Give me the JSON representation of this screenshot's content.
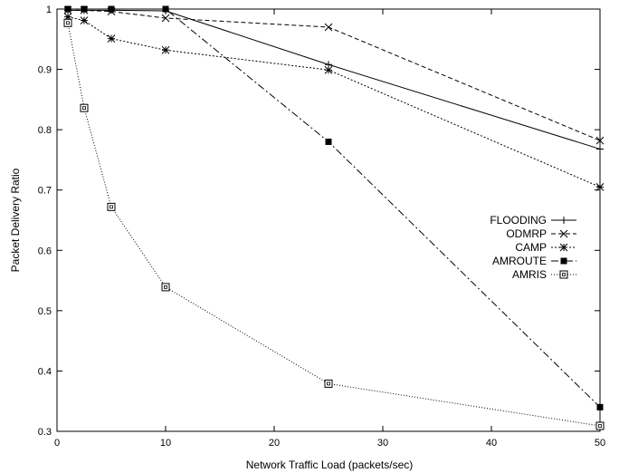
{
  "chart_data": {
    "type": "line",
    "title": "",
    "xlabel": "Network Traffic Load (packets/sec)",
    "ylabel": "Packet Delivery Ratio",
    "xlim": [
      0,
      50
    ],
    "ylim": [
      0.3,
      1.0
    ],
    "x_ticks": [
      "0",
      "10",
      "20",
      "30",
      "40",
      "50"
    ],
    "y_ticks": [
      "0.3",
      "0.4",
      "0.5",
      "0.6",
      "0.7",
      "0.8",
      "0.9",
      "1"
    ],
    "grid": false,
    "legend_position": "right",
    "series": [
      {
        "name": "FLOODING",
        "marker": "plus",
        "dash": "solid",
        "x": [
          1,
          2.5,
          5,
          10,
          25,
          50
        ],
        "y": [
          0.998,
          0.998,
          0.998,
          0.997,
          0.908,
          0.768
        ]
      },
      {
        "name": "ODMRP",
        "marker": "cross",
        "dash": "dashed",
        "x": [
          1,
          2.5,
          5,
          10,
          25,
          50
        ],
        "y": [
          0.998,
          0.998,
          0.996,
          0.985,
          0.97,
          0.782
        ]
      },
      {
        "name": "CAMP",
        "marker": "star",
        "dash": "dotted",
        "x": [
          1,
          2.5,
          5,
          10,
          25,
          50
        ],
        "y": [
          0.987,
          0.981,
          0.951,
          0.932,
          0.899,
          0.705
        ]
      },
      {
        "name": "AMROUTE",
        "marker": "filled-square",
        "dash": "dashdot",
        "x": [
          1,
          2.5,
          5,
          10,
          25,
          50
        ],
        "y": [
          1.0,
          1.0,
          1.0,
          1.0,
          0.78,
          0.34
        ]
      },
      {
        "name": "AMRIS",
        "marker": "open-square",
        "dash": "finedot",
        "x": [
          1,
          2.5,
          5,
          10,
          25,
          50
        ],
        "y": [
          0.977,
          0.836,
          0.672,
          0.539,
          0.379,
          0.309
        ]
      }
    ]
  }
}
